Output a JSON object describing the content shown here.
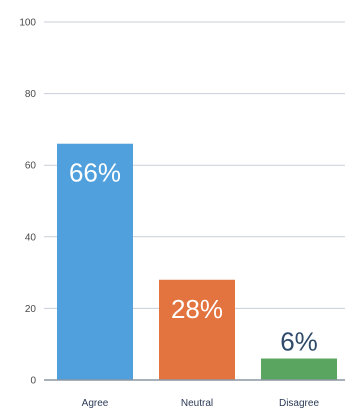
{
  "chart_data": {
    "type": "bar",
    "categories": [
      "Agree",
      "Neutral",
      "Disagree"
    ],
    "values": [
      66,
      28,
      6
    ],
    "data_labels": [
      "66%",
      "28%",
      "6%"
    ],
    "colors": [
      "#4fa0dc",
      "#e3743f",
      "#5aa55f"
    ],
    "ylim": [
      0,
      100
    ],
    "yticks": [
      0,
      20,
      40,
      60,
      80,
      100
    ],
    "title": "",
    "xlabel": "",
    "ylabel": "",
    "grid": true,
    "legend": "none"
  }
}
